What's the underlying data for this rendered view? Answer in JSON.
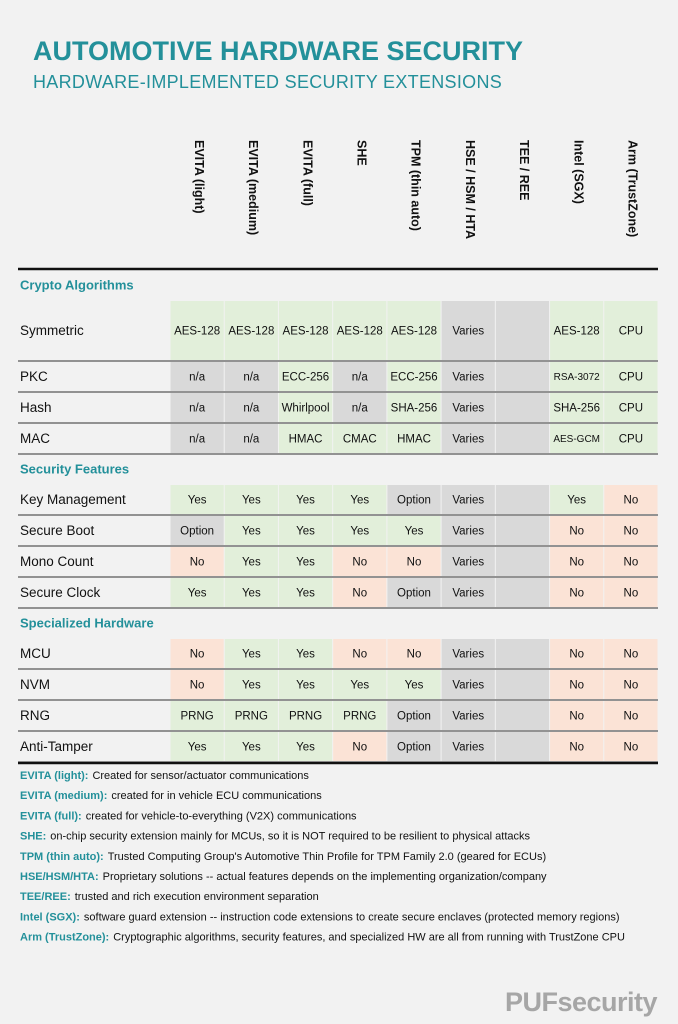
{
  "header": {
    "title": "AUTOMOTIVE HARDWARE SECURITY",
    "subtitle": "HARDWARE-IMPLEMENTED SECURITY EXTENSIONS"
  },
  "table": {
    "columns": [
      "EVITA (light)",
      "EVITA (medium)",
      "EVITA (full)",
      "SHE",
      "TPM (thin auto)",
      "HSE / HSM / HTA",
      "TEE / REE",
      "Intel (SGX)",
      "Arm (TrustZone)"
    ],
    "sections": [
      {
        "title": "Crypto Algorithms",
        "rows": [
          {
            "label": "Symmetric",
            "cells": [
              "AES-128",
              "AES-128",
              "AES-128",
              "AES-128",
              "AES-128",
              "Varies",
              null,
              "AES-128",
              "CPU"
            ],
            "fills": [
              "#e2efda",
              "#e2efda",
              "#e2efda",
              "#e2efda",
              "#e2efda",
              "#d9d9d9",
              "#d9d9d9",
              "#e2efda",
              "#e2efda"
            ]
          },
          {
            "label": "PKC",
            "cells": [
              "n/a",
              "n/a",
              "ECC-256",
              "n/a",
              "ECC-256",
              "Varies",
              null,
              "RSA-3072",
              "CPU"
            ],
            "fills": [
              "#d9d9d9",
              "#d9d9d9",
              "#e2efda",
              "#d9d9d9",
              "#e2efda",
              "#d9d9d9",
              "#d9d9d9",
              "#e2efda",
              "#e2efda"
            ]
          },
          {
            "label": "Hash",
            "cells": [
              "n/a",
              "n/a",
              "Whirlpool",
              "n/a",
              "SHA-256",
              "Varies",
              null,
              "SHA-256",
              "CPU"
            ],
            "fills": [
              "#d9d9d9",
              "#d9d9d9",
              "#e2efda",
              "#d9d9d9",
              "#e2efda",
              "#d9d9d9",
              "#d9d9d9",
              "#e2efda",
              "#e2efda"
            ]
          },
          {
            "label": "MAC",
            "cells": [
              "n/a",
              "n/a",
              "HMAC",
              "CMAC",
              "HMAC",
              "Varies",
              null,
              "AES-GCM",
              "CPU"
            ],
            "fills": [
              "#d9d9d9",
              "#d9d9d9",
              "#e2efda",
              "#e2efda",
              "#e2efda",
              "#d9d9d9",
              "#d9d9d9",
              "#e2efda",
              "#e2efda"
            ]
          }
        ]
      },
      {
        "title": "Security Features",
        "rows": [
          {
            "label": "Key Management",
            "cells": [
              "Yes",
              "Yes",
              "Yes",
              "Yes",
              "Option",
              "Varies",
              null,
              "Yes",
              "No"
            ],
            "fills": [
              "#e2efda",
              "#e2efda",
              "#e2efda",
              "#e2efda",
              "#d9d9d9",
              "#d9d9d9",
              "#d9d9d9",
              "#e2efda",
              "#fbe3d6"
            ]
          },
          {
            "label": "Secure Boot",
            "cells": [
              "Option",
              "Yes",
              "Yes",
              "Yes",
              "Yes",
              "Varies",
              null,
              "No",
              "No"
            ],
            "fills": [
              "#d9d9d9",
              "#e2efda",
              "#e2efda",
              "#e2efda",
              "#e2efda",
              "#d9d9d9",
              "#d9d9d9",
              "#fbe3d6",
              "#fbe3d6"
            ]
          },
          {
            "label": "Mono Count",
            "cells": [
              "No",
              "Yes",
              "Yes",
              "No",
              "No",
              "Varies",
              null,
              "No",
              "No"
            ],
            "fills": [
              "#fbe3d6",
              "#e2efda",
              "#e2efda",
              "#fbe3d6",
              "#fbe3d6",
              "#d9d9d9",
              "#d9d9d9",
              "#fbe3d6",
              "#fbe3d6"
            ]
          },
          {
            "label": "Secure Clock",
            "cells": [
              "Yes",
              "Yes",
              "Yes",
              "No",
              "Option",
              "Varies",
              null,
              "No",
              "No"
            ],
            "fills": [
              "#e2efda",
              "#e2efda",
              "#e2efda",
              "#fbe3d6",
              "#d9d9d9",
              "#d9d9d9",
              "#d9d9d9",
              "#fbe3d6",
              "#fbe3d6"
            ]
          }
        ]
      },
      {
        "title": "Specialized Hardware",
        "rows": [
          {
            "label": "MCU",
            "cells": [
              "No",
              "Yes",
              "Yes",
              "No",
              "No",
              "Varies",
              null,
              "No",
              "No"
            ],
            "fills": [
              "#fbe3d6",
              "#e2efda",
              "#e2efda",
              "#fbe3d6",
              "#fbe3d6",
              "#d9d9d9",
              "#d9d9d9",
              "#fbe3d6",
              "#fbe3d6"
            ]
          },
          {
            "label": "NVM",
            "cells": [
              "No",
              "Yes",
              "Yes",
              "Yes",
              "Yes",
              "Varies",
              null,
              "No",
              "No"
            ],
            "fills": [
              "#fbe3d6",
              "#e2efda",
              "#e2efda",
              "#e2efda",
              "#e2efda",
              "#d9d9d9",
              "#d9d9d9",
              "#fbe3d6",
              "#fbe3d6"
            ]
          },
          {
            "label": "RNG",
            "cells": [
              "PRNG",
              "PRNG",
              "PRNG",
              "PRNG",
              "Option",
              "Varies",
              null,
              "No",
              "No"
            ],
            "fills": [
              "#e2efda",
              "#e2efda",
              "#e2efda",
              "#e2efda",
              "#d9d9d9",
              "#d9d9d9",
              "#d9d9d9",
              "#fbe3d6",
              "#fbe3d6"
            ]
          },
          {
            "label": "Anti-Tamper",
            "cells": [
              "Yes",
              "Yes",
              "Yes",
              "No",
              "Option",
              "Varies",
              null,
              "No",
              "No"
            ],
            "fills": [
              "#e2efda",
              "#e2efda",
              "#e2efda",
              "#fbe3d6",
              "#d9d9d9",
              "#d9d9d9",
              "#d9d9d9",
              "#fbe3d6",
              "#fbe3d6"
            ]
          }
        ]
      }
    ]
  },
  "notes": [
    {
      "term": "EVITA (light):",
      "text": "Created for sensor/actuator communications"
    },
    {
      "term": "EVITA (medium):",
      "text": "created for in vehicle ECU communications"
    },
    {
      "term": "EVITA (full):",
      "text": "created for vehicle-to-everything (V2X) communications"
    },
    {
      "term": "SHE:",
      "text": "on-chip security extension mainly for MCUs, so it is NOT required to be resilient to physical attacks"
    },
    {
      "term": "TPM (thin auto):",
      "text": "Trusted Computing Group's Automotive Thin Profile for TPM Family 2.0 (geared for ECUs)"
    },
    {
      "term": "HSE/HSM/HTA:",
      "text": "Proprietary solutions -- actual features depends on the implementing organization/company"
    },
    {
      "term": "TEE/REE:",
      "text": "trusted and rich execution environment separation"
    },
    {
      "term": "Intel (SGX):",
      "text": "software guard extension -- instruction code extensions to create secure enclaves (protected memory regions)"
    },
    {
      "term": "Arm (TrustZone):",
      "text": "Cryptographic algorithms, security features, and specialized HW are all from running with TrustZone CPU"
    }
  ],
  "footer": {
    "logo": "PUFsecurity"
  }
}
